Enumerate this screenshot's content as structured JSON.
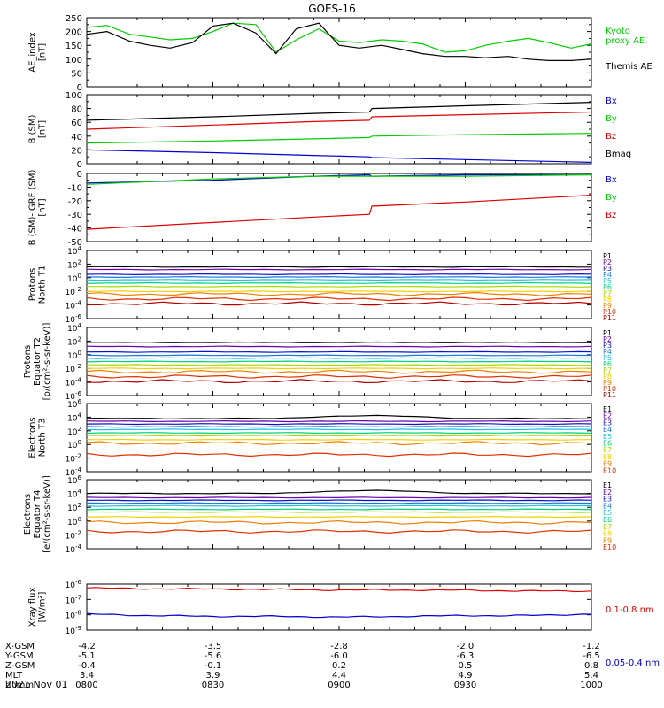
{
  "title": "GOES-16",
  "date": "2021 Nov 01",
  "footer": {
    "rows": [
      {
        "label": "X-GSM",
        "values": [
          "-4.2",
          "-3.5",
          "-2.8",
          "-2.0",
          "-1.2"
        ]
      },
      {
        "label": "Y-GSM",
        "values": [
          "-5.1",
          "-5.6",
          "-6.0",
          "-6.3",
          "-6.5"
        ]
      },
      {
        "label": "Z-GSM",
        "values": [
          "-0.4",
          "-0.1",
          "0.2",
          "0.5",
          "0.8"
        ]
      },
      {
        "label": "MLT",
        "values": [
          "3.4",
          "3.9",
          "4.4",
          "4.9",
          "5.4"
        ]
      },
      {
        "label": "hhmm",
        "values": [
          "0800",
          "0830",
          "0900",
          "0930",
          "1000"
        ]
      }
    ]
  },
  "colors": {
    "black": "#000000",
    "green": "#00cc00",
    "blue": "#0000cc",
    "red": "#dd0000",
    "P1": "#000000",
    "P2": "#6a00a8",
    "P3": "#1010d0",
    "P4": "#1a7ad8",
    "P5": "#22c0e0",
    "P6": "#00d080",
    "P7": "#a8d800",
    "P8": "#f0d000",
    "P9": "#f08000",
    "P10": "#e03000",
    "P11": "#b00000"
  },
  "chart_data": [
    {
      "type": "line",
      "panel": "ae",
      "ylabel": "AE_index\n[nT]",
      "ylim": [
        0,
        250
      ],
      "yticks": [
        0,
        50,
        100,
        150,
        200,
        250
      ],
      "x_hours": [
        8.0,
        8.08,
        8.17,
        8.25,
        8.33,
        8.42,
        8.5,
        8.58,
        8.67,
        8.75,
        8.83,
        8.92,
        9.0,
        9.08,
        9.17,
        9.25,
        9.33,
        9.42,
        9.5,
        9.58,
        9.67,
        9.75,
        9.83,
        9.92,
        10.0
      ],
      "series": [
        {
          "name": "Kyoto\nproxy AE",
          "color": "green",
          "values": [
            215,
            222,
            190,
            180,
            170,
            175,
            200,
            230,
            225,
            125,
            170,
            210,
            165,
            160,
            170,
            165,
            155,
            125,
            130,
            150,
            165,
            175,
            160,
            140,
            155
          ]
        },
        {
          "name": "Themis AE",
          "color": "black",
          "values": [
            190,
            200,
            165,
            150,
            140,
            160,
            220,
            230,
            195,
            120,
            210,
            230,
            150,
            140,
            150,
            135,
            120,
            110,
            110,
            105,
            110,
            100,
            95,
            95,
            100
          ]
        }
      ]
    },
    {
      "type": "line",
      "panel": "b_sm",
      "ylabel": "B (SM)\n[nT]",
      "ylim": [
        0,
        100
      ],
      "yticks": [
        0,
        20,
        40,
        60,
        80,
        100
      ],
      "x_hours": [
        8.0,
        8.5,
        8.9,
        9.12,
        9.13,
        9.5,
        10.0
      ],
      "series": [
        {
          "name": "Bx",
          "color": "blue",
          "values": [
            20,
            16,
            12,
            10,
            9,
            6,
            2
          ]
        },
        {
          "name": "By",
          "color": "green",
          "values": [
            30,
            33,
            36,
            38,
            40,
            42,
            44
          ]
        },
        {
          "name": "Bz",
          "color": "red",
          "values": [
            50,
            56,
            61,
            63,
            68,
            71,
            75
          ]
        },
        {
          "name": "Bmag",
          "color": "black",
          "values": [
            63,
            68,
            73,
            75,
            80,
            84,
            89
          ]
        }
      ]
    },
    {
      "type": "line",
      "panel": "b_igrf",
      "ylabel": "B (SM)-IGRF (SM)\n[nT]",
      "ylim": [
        -50,
        0
      ],
      "yticks": [
        -50,
        -40,
        -30,
        -20,
        -10,
        0
      ],
      "x_hours": [
        8.0,
        8.5,
        8.9,
        9.12,
        9.13,
        9.5,
        10.0
      ],
      "series": [
        {
          "name": "Bx",
          "color": "blue",
          "values": [
            -7,
            -5,
            -2,
            -1,
            -2,
            -1,
            -1
          ]
        },
        {
          "name": "By",
          "color": "green",
          "values": [
            -8,
            -4,
            -2,
            -2,
            -2,
            -2,
            -1
          ]
        },
        {
          "name": "Bz",
          "color": "red",
          "values": [
            -41,
            -36,
            -32,
            -30,
            -24,
            -21,
            -16
          ]
        }
      ]
    },
    {
      "type": "line",
      "panel": "protons_t1",
      "ylabel": "Protons\nNorth T1",
      "yscale": "log",
      "ylim_exp": [
        -6,
        4
      ],
      "series_levels_exp": {
        "P1": 1.6,
        "P2": 1.2,
        "P3": 0.5,
        "P4": 0.1,
        "P5": -0.3,
        "P6": -0.8,
        "P7": -1.3,
        "P8": -2.0,
        "P9": -2.4,
        "P10": -3.1,
        "P11": -3.8
      },
      "legend": [
        "P1",
        "P2",
        "P3",
        "P4",
        "P5",
        "P6",
        "P7",
        "P8",
        "P9",
        "P10",
        "P11"
      ]
    },
    {
      "type": "line",
      "panel": "protons_t2",
      "ylabel": "Protons\nEquator T2\n[p/(cm²-s-sr-keV)]",
      "yscale": "log",
      "ylim_exp": [
        -6,
        4
      ],
      "series_levels_exp": {
        "P1": 1.8,
        "P2": 1.2,
        "P3": 0.4,
        "P4": -0.1,
        "P5": -0.5,
        "P6": -1.0,
        "P7": -1.5,
        "P8": -2.0,
        "P9": -2.5,
        "P10": -3.2,
        "P11": -3.9
      },
      "legend": [
        "P1",
        "P2",
        "P3",
        "P4",
        "P5",
        "P6",
        "P7",
        "P8",
        "P9",
        "P10",
        "P11"
      ]
    },
    {
      "type": "line",
      "panel": "electrons_t3",
      "ylabel": "Electrons\nNorth T3",
      "yscale": "log",
      "ylim_exp": [
        -4,
        6
      ],
      "series_levels_exp": {
        "E1": 3.8,
        "E2": 3.4,
        "E3": 3.0,
        "E4": 2.6,
        "E5": 2.2,
        "E6": 1.7,
        "E7": 1.3,
        "E8": 0.7,
        "E9": 0.2,
        "E10": -1.5
      },
      "legend": [
        "E1",
        "E2",
        "E3",
        "E4",
        "E5",
        "E6",
        "E7",
        "E8",
        "E9",
        "E10"
      ]
    },
    {
      "type": "line",
      "panel": "electrons_t4",
      "ylabel": "Electrons\nEquator T4\n[e/(cm²-s-sr-keV)]",
      "yscale": "log",
      "ylim_exp": [
        -4,
        6
      ],
      "series_levels_exp": {
        "E1": 4.0,
        "E2": 3.4,
        "E3": 3.0,
        "E4": 2.6,
        "E5": 2.2,
        "E6": 1.7,
        "E7": 1.3,
        "E8": 0.6,
        "E9": -0.2,
        "E10": -1.5
      },
      "legend": [
        "E1",
        "E2",
        "E3",
        "E4",
        "E5",
        "E6",
        "E7",
        "E8",
        "E9",
        "E10"
      ]
    },
    {
      "type": "line",
      "panel": "xray",
      "ylabel": "Xray flux\n[W/m²]",
      "yscale": "log",
      "ylim_exp": [
        -9,
        -6
      ],
      "x_hours": [
        8.0,
        8.25,
        8.5,
        8.75,
        9.0,
        9.25,
        9.5,
        9.75,
        10.0
      ],
      "series": [
        {
          "name": "0.1-0.8 nm",
          "color": "red",
          "values_exp": [
            -6.25,
            -6.3,
            -6.32,
            -6.35,
            -6.38,
            -6.38,
            -6.4,
            -6.45,
            -6.45
          ]
        },
        {
          "name": "0.05-0.4 nm",
          "color": "blue",
          "values_exp": [
            -7.95,
            -8.05,
            -8.1,
            -8.1,
            -8.15,
            -8.1,
            -8.05,
            -8.05,
            -7.95
          ]
        }
      ]
    }
  ]
}
